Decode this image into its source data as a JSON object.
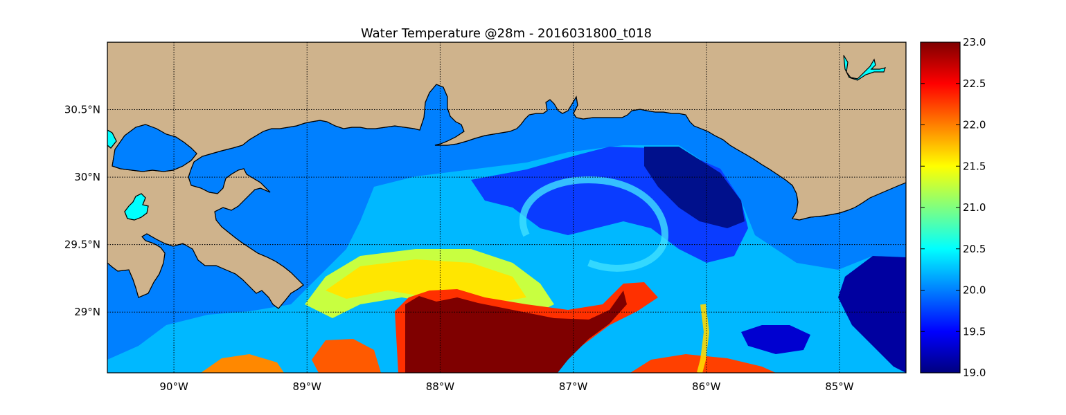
{
  "title": "Water Temperature @28m - 2016031800_t018",
  "map": {
    "lon_range": [
      -90.5,
      -84.5
    ],
    "lat_range": [
      28.55,
      31.0
    ],
    "lon_ticks": [
      {
        "value": -90,
        "label": "90°W"
      },
      {
        "value": -89,
        "label": "89°W"
      },
      {
        "value": -88,
        "label": "88°W"
      },
      {
        "value": -87,
        "label": "87°W"
      },
      {
        "value": -86,
        "label": "86°W"
      },
      {
        "value": -85,
        "label": "85°W"
      }
    ],
    "lat_ticks": [
      {
        "value": 30.5,
        "label": "30.5°N"
      },
      {
        "value": 30.0,
        "label": "30°N"
      },
      {
        "value": 29.5,
        "label": "29.5°N"
      },
      {
        "value": 29.0,
        "label": "29°N"
      }
    ],
    "grid": "dotted",
    "land_color": "#cfb38c",
    "inland_water_color": "#00ffff",
    "masked_ocean_color": "#0080ff"
  },
  "colorbar": {
    "colormap": "jet",
    "range": [
      19.0,
      23.0
    ],
    "ticks": [
      "23.0",
      "22.5",
      "22.0",
      "21.5",
      "21.0",
      "20.5",
      "20.0",
      "19.5",
      "19.0"
    ],
    "position": "right"
  }
}
